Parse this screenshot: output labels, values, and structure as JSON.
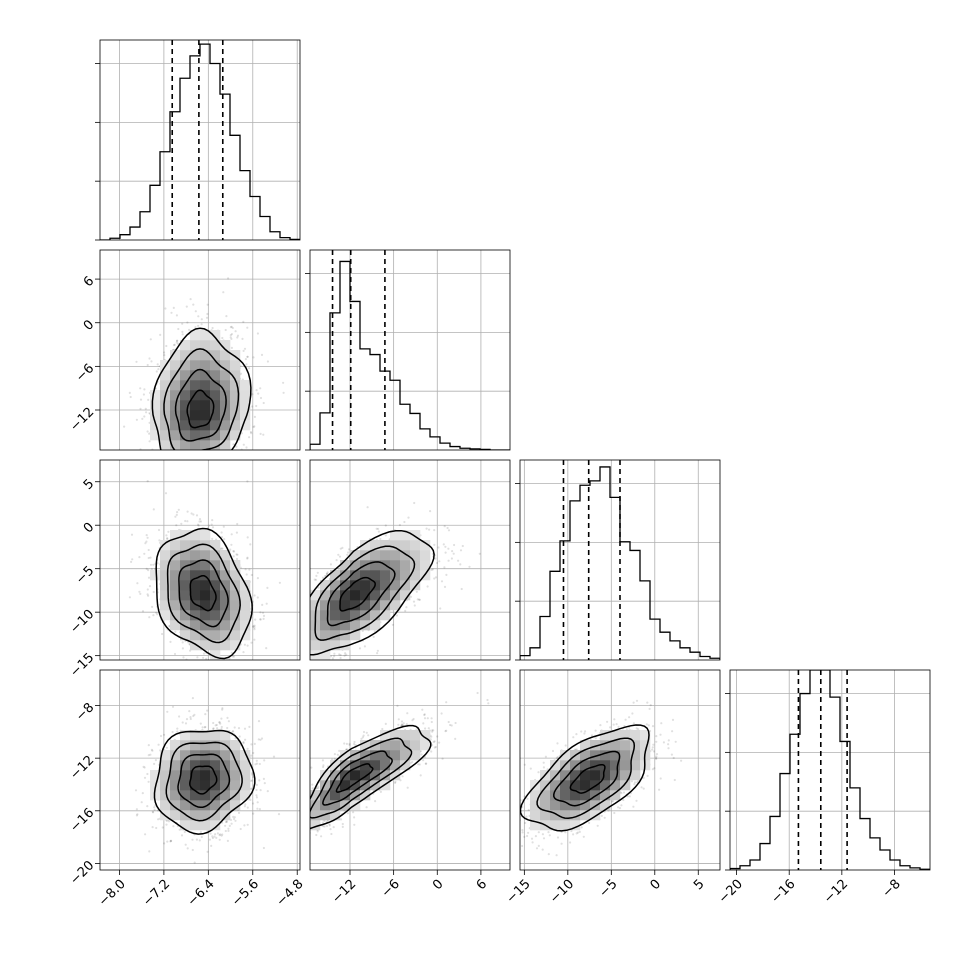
{
  "chart_data": {
    "type": "corner",
    "grid": true,
    "params": [
      {
        "id": "p0",
        "range": [
          -8.35,
          -4.75
        ],
        "ticks": [
          -8.0,
          -7.2,
          -6.4,
          -5.6,
          -4.8
        ],
        "tick_labels": [
          "−8.0",
          "−7.2",
          "−6.4",
          "−5.6",
          "−4.8"
        ],
        "quantiles": [
          -7.05,
          -6.57,
          -6.14
        ],
        "hist_ymax": 3400
      },
      {
        "id": "p1",
        "range": [
          -17.5,
          10.0
        ],
        "ticks": [
          -12,
          -6,
          0,
          6
        ],
        "tick_labels": [
          "−12",
          "−6",
          "0",
          "6"
        ],
        "quantiles": [
          -14.4,
          -11.9,
          -7.2
        ],
        "hist_ymax": 3500
      },
      {
        "id": "p2",
        "range": [
          -15.5,
          7.5
        ],
        "ticks": [
          -15,
          -10,
          -5,
          0,
          5
        ],
        "tick_labels": [
          "−15",
          "−10",
          "−5",
          "0",
          "5"
        ],
        "quantiles": [
          -10.5,
          -7.6,
          -4.0
        ],
        "hist_ymax": 2300
      },
      {
        "id": "p3",
        "range": [
          -20.5,
          -5.3
        ],
        "ticks": [
          -20,
          -16,
          -12,
          -8
        ],
        "tick_labels": [
          "−20",
          "−16",
          "−12",
          "−8"
        ],
        "quantiles": [
          -15.3,
          -13.6,
          -11.6
        ],
        "hist_ymax": 2800
      }
    ],
    "histograms": [
      {
        "param": "p0",
        "edges": [
          -8.35,
          -8.17,
          -7.99,
          -7.81,
          -7.63,
          -7.45,
          -7.27,
          -7.09,
          -6.91,
          -6.73,
          -6.55,
          -6.37,
          -6.19,
          -6.01,
          -5.83,
          -5.65,
          -5.47,
          -5.29,
          -5.11,
          -4.93,
          -4.75
        ],
        "counts": [
          0,
          30,
          90,
          220,
          480,
          930,
          1500,
          2180,
          2750,
          3130,
          3330,
          3000,
          2480,
          1780,
          1180,
          740,
          400,
          140,
          40,
          10
        ]
      },
      {
        "param": "p1",
        "edges": [
          -17.5,
          -16.125,
          -14.75,
          -13.375,
          -12.0,
          -10.625,
          -9.25,
          -7.875,
          -6.5,
          -5.125,
          -3.75,
          -2.375,
          -1.0,
          0.375,
          1.75,
          3.125,
          4.5,
          5.875,
          7.25,
          8.625,
          10.0
        ],
        "counts": [
          100,
          650,
          2400,
          3300,
          2600,
          1770,
          1670,
          1380,
          1220,
          800,
          640,
          370,
          230,
          120,
          60,
          30,
          20,
          10,
          0,
          0
        ]
      },
      {
        "param": "p2",
        "edges": [
          -15.5,
          -14.35,
          -13.2,
          -12.05,
          -10.9,
          -9.75,
          -8.6,
          -7.45,
          -6.3,
          -5.15,
          -4.0,
          -2.85,
          -1.7,
          -0.55,
          0.6,
          1.75,
          2.9,
          4.05,
          5.2,
          6.35,
          7.5
        ],
        "counts": [
          50,
          140,
          500,
          1020,
          1370,
          1830,
          2010,
          2060,
          2220,
          1870,
          1360,
          1260,
          910,
          470,
          320,
          220,
          140,
          90,
          40,
          20
        ]
      },
      {
        "param": "p3",
        "edges": [
          -20.5,
          -19.74,
          -18.98,
          -18.22,
          -17.46,
          -16.7,
          -15.94,
          -15.18,
          -14.42,
          -13.66,
          -12.9,
          -12.14,
          -11.38,
          -10.62,
          -9.86,
          -9.1,
          -8.34,
          -7.58,
          -6.82,
          -6.06,
          -5.3
        ],
        "counts": [
          20,
          60,
          140,
          370,
          750,
          1350,
          1900,
          2470,
          2800,
          2800,
          2420,
          1800,
          1150,
          720,
          450,
          280,
          140,
          60,
          30,
          10
        ]
      }
    ],
    "pairs": [
      {
        "x": "p0",
        "y": "p1",
        "center": [
          -6.55,
          -12.4
        ],
        "sd": [
          0.42,
          3.6
        ],
        "rho": 0.12,
        "skew_y": "up"
      },
      {
        "x": "p0",
        "y": "p2",
        "center": [
          -6.5,
          -7.8
        ],
        "sd": [
          0.42,
          3.5
        ],
        "rho": -0.25
      },
      {
        "x": "p1",
        "y": "p2",
        "center": [
          -11.5,
          -8.0
        ],
        "sd": [
          3.5,
          3.4
        ],
        "rho": 0.65,
        "skew_x": "right"
      },
      {
        "x": "p0",
        "y": "p3",
        "center": [
          -6.5,
          -13.6
        ],
        "sd": [
          0.43,
          1.9
        ],
        "rho": 0.1
      },
      {
        "x": "p1",
        "y": "p3",
        "center": [
          -11.8,
          -13.5
        ],
        "sd": [
          3.5,
          1.9
        ],
        "rho": 0.82,
        "skew_x": "right"
      },
      {
        "x": "p2",
        "y": "p3",
        "center": [
          -7.6,
          -13.6
        ],
        "sd": [
          3.5,
          1.9
        ],
        "rho": 0.6
      }
    ]
  }
}
